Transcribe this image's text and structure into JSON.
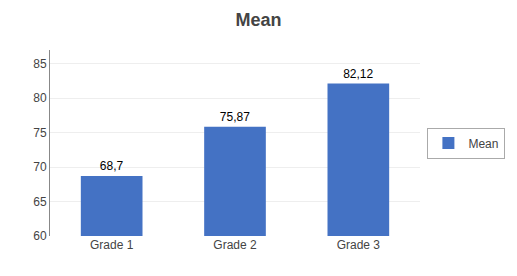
{
  "chart_data": {
    "type": "bar",
    "title": "Mean",
    "categories": [
      "Grade 1",
      "Grade 2",
      "Grade 3"
    ],
    "series": [
      {
        "name": "Mean",
        "color": "#4472C4",
        "values": [
          68.7,
          75.87,
          82.12
        ],
        "value_labels": [
          "68,7",
          "75,87",
          "82,12"
        ]
      }
    ],
    "ylim": [
      60,
      87
    ],
    "yticks": [
      60,
      65,
      70,
      75,
      80,
      85
    ],
    "grid": true,
    "data_labels": true,
    "legend": "right"
  }
}
